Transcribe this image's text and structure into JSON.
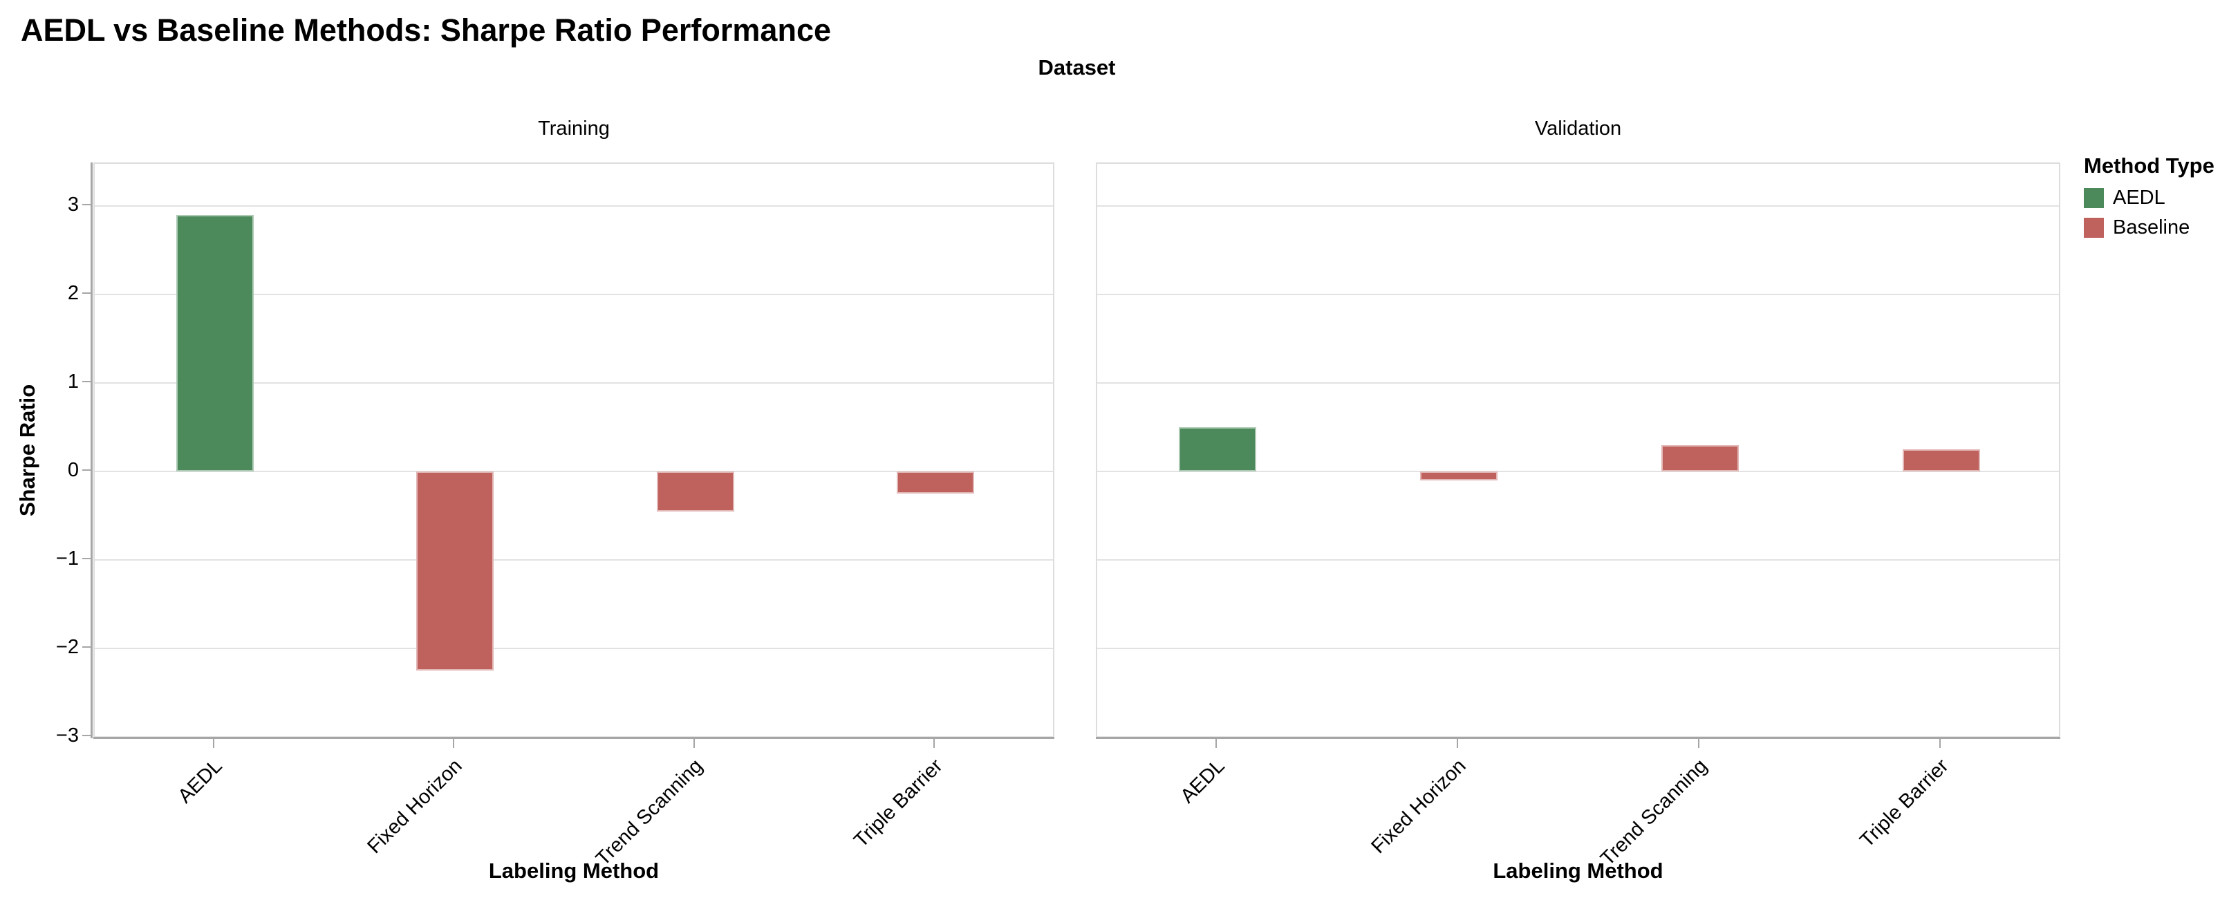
{
  "chart_data": {
    "type": "bar",
    "title": "AEDL vs Baseline Methods: Sharpe Ratio Performance",
    "facet_title": "Dataset",
    "categories": [
      "AEDL",
      "Fixed Horizon",
      "Trend Scanning",
      "Triple Barrier"
    ],
    "category_types": [
      "AEDL",
      "Baseline",
      "Baseline",
      "Baseline"
    ],
    "facets": [
      {
        "name": "Training",
        "values": [
          2.9,
          -2.25,
          -0.45,
          -0.25
        ]
      },
      {
        "name": "Validation",
        "values": [
          0.5,
          -0.1,
          0.3,
          0.25
        ]
      }
    ],
    "xlabel": "Labeling Method",
    "ylabel": "Sharpe Ratio",
    "ylim": [
      -3.03,
      3.48
    ],
    "yticks": [
      3,
      2,
      1,
      0,
      -1,
      -2,
      -3
    ],
    "ytick_labels": [
      "3",
      "2",
      "1",
      "0",
      "−1",
      "−2",
      "−3"
    ],
    "grid": true,
    "legend": {
      "title": "Method Type",
      "position": "right",
      "entries": [
        {
          "label": "AEDL",
          "color": "#4c8a5c"
        },
        {
          "label": "Baseline",
          "color": "#bf625e"
        }
      ]
    },
    "colors": {
      "AEDL": "#4c8a5c",
      "Baseline": "#bf625e"
    }
  }
}
